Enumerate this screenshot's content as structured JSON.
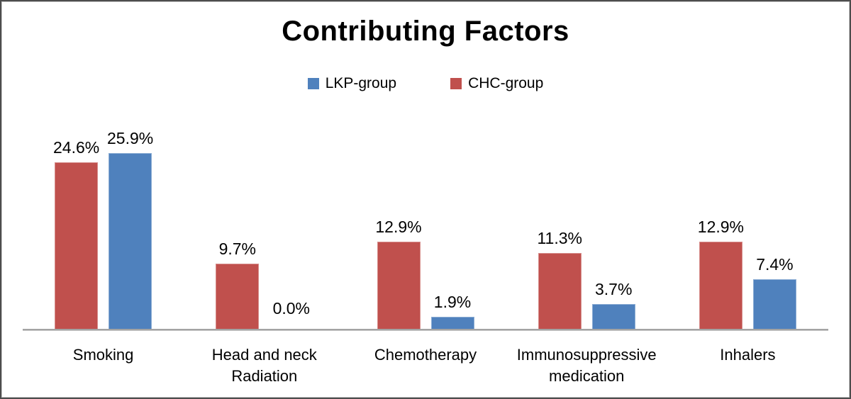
{
  "title": "Contributing Factors",
  "legend": [
    {
      "label": "LKP-group",
      "color": "#4F81BD"
    },
    {
      "label": "CHC-group",
      "color": "#C0504D"
    }
  ],
  "chart_data": {
    "type": "bar",
    "title": "Contributing Factors",
    "categories": [
      "Smoking",
      "Head and neck Radiation",
      "Chemotherapy",
      "Immunosuppressive medication",
      "Inhalers"
    ],
    "series": [
      {
        "name": "CHC-group",
        "color": "#C0504D",
        "values": [
          24.6,
          9.7,
          12.9,
          11.3,
          12.9
        ]
      },
      {
        "name": "LKP-group",
        "color": "#4F81BD",
        "values": [
          25.9,
          0.0,
          1.9,
          3.7,
          7.4
        ]
      }
    ],
    "data_labels": {
      "CHC-group": [
        "24.6%",
        "9.7%",
        "12.9%",
        "11.3%",
        "12.9%"
      ],
      "LKP-group": [
        "25.9%",
        "0.0%",
        "1.9%",
        "3.7%",
        "7.4%"
      ]
    },
    "xlabel": "",
    "ylabel": "",
    "ylim": [
      0,
      30
    ],
    "grid": false,
    "legend_position": "top-center",
    "bar_draw_order": "CHC-group bar on the left, LKP-group bar on the right within each category group",
    "axis_line_color": "#A3A3A3",
    "frame_border_color": "#4D4D4D"
  }
}
